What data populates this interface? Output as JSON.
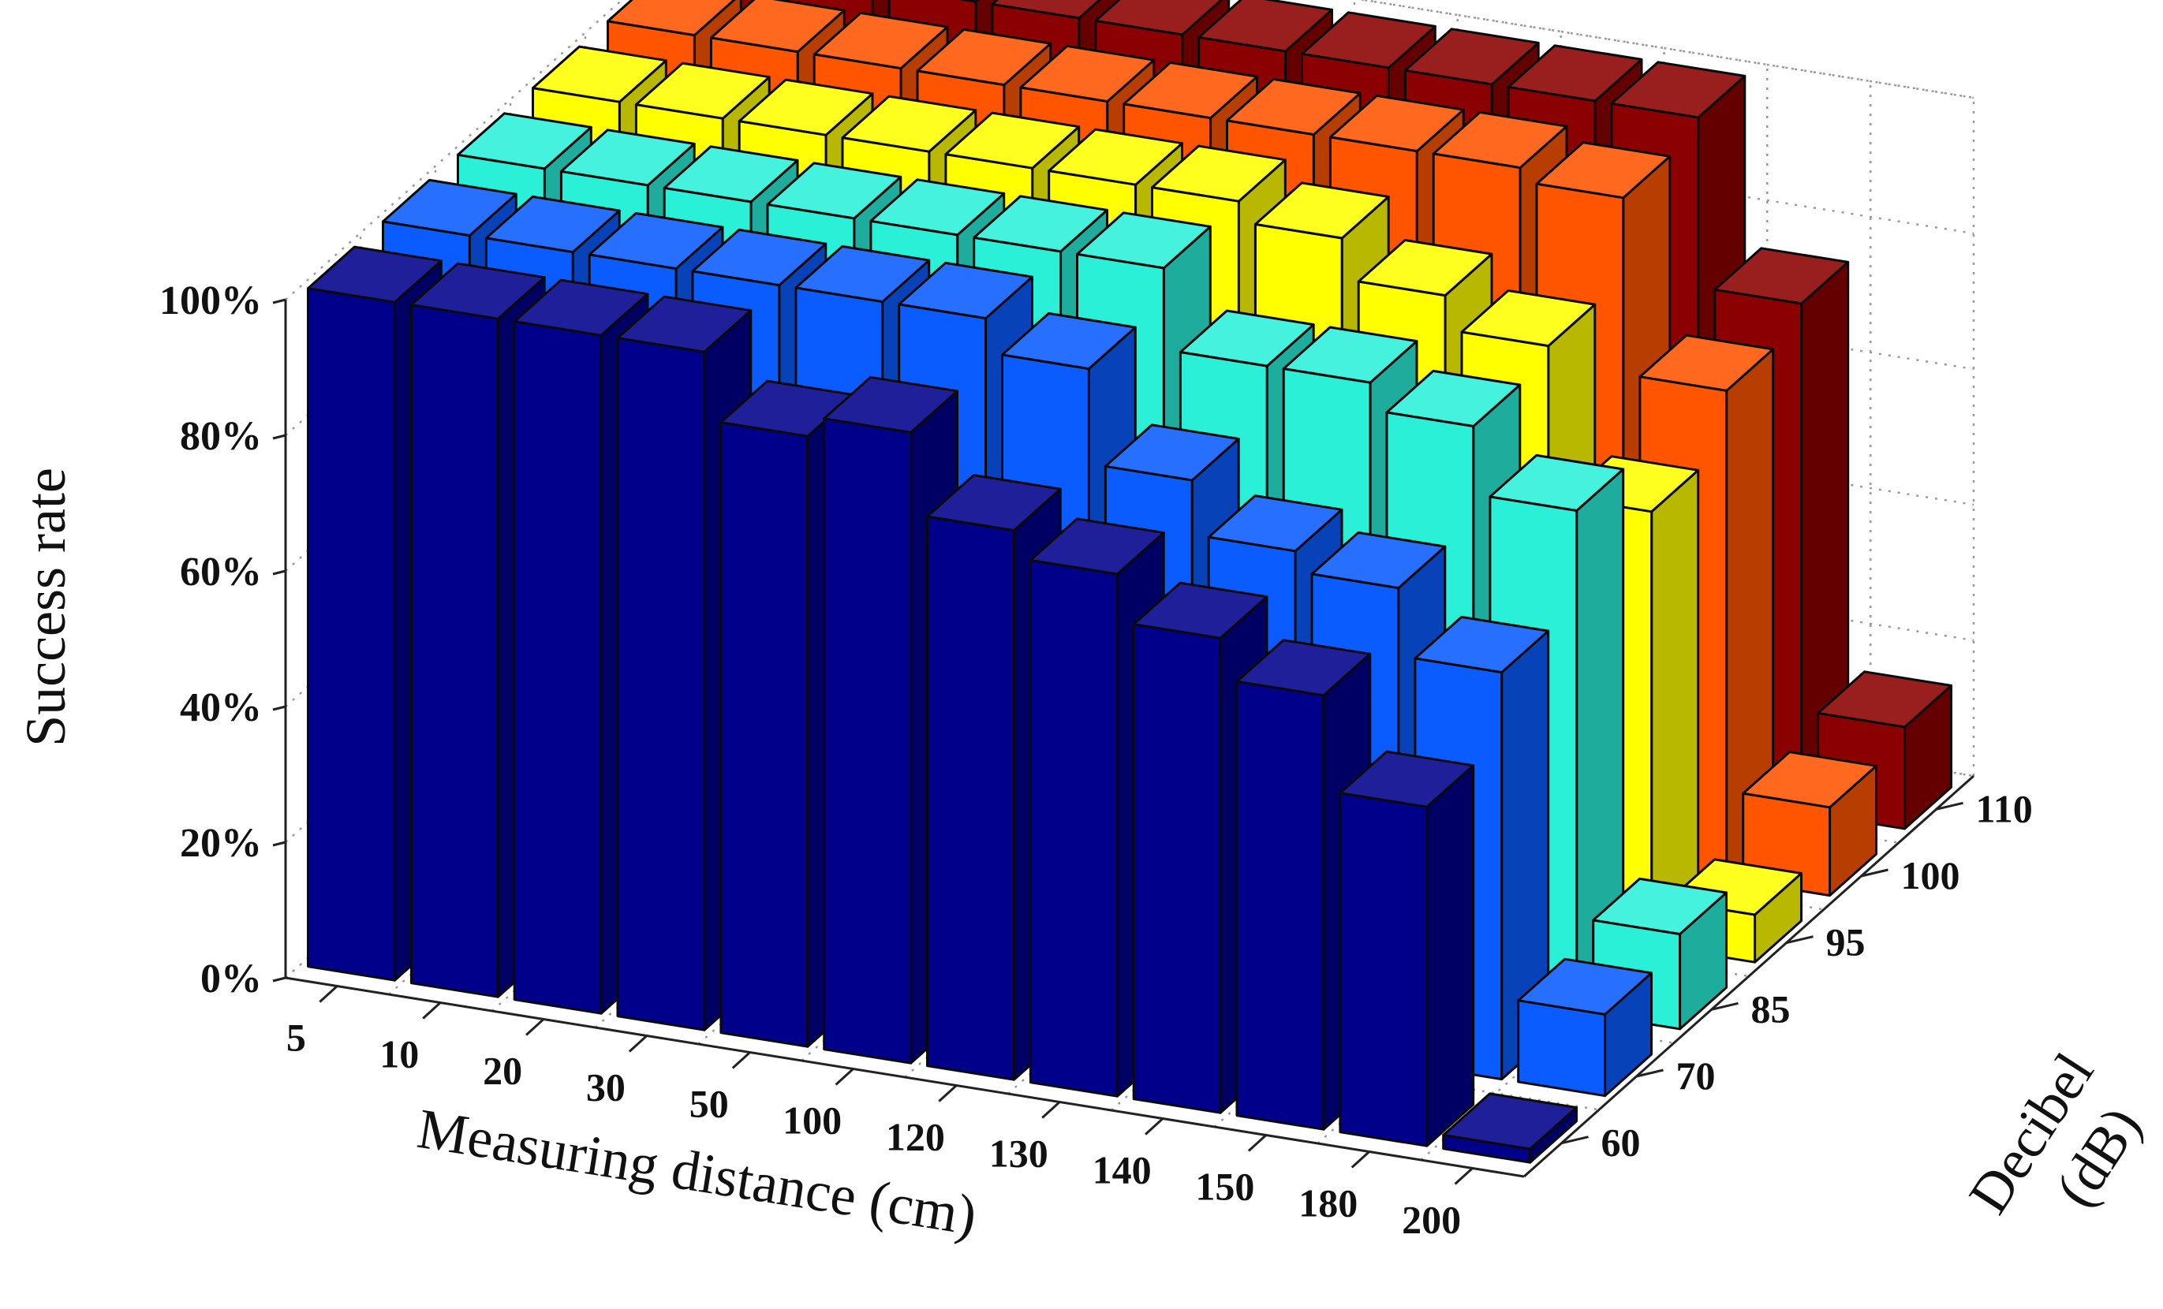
{
  "chart_data": {
    "type": "bar3d",
    "title": "",
    "zlabel": "Success rate",
    "xlabel": "Measuring distance (cm)",
    "ylabel_line1": "Decibel",
    "ylabel_line2": "(dB)",
    "z_ticks": [
      "0%",
      "20%",
      "40%",
      "60%",
      "80%",
      "100%"
    ],
    "zlim": [
      0,
      100
    ],
    "categories": [
      "5",
      "10",
      "20",
      "30",
      "50",
      "100",
      "120",
      "130",
      "140",
      "150",
      "180",
      "200"
    ],
    "series": [
      {
        "name": "60",
        "color": "#00008b",
        "values": [
          100,
          100,
          100,
          100,
          90,
          93,
          81,
          77,
          70,
          64,
          50,
          2
        ]
      },
      {
        "name": "70",
        "color": "#0a5cff",
        "values": [
          100,
          100,
          100,
          100,
          100,
          100,
          95,
          81,
          73,
          70,
          60,
          12
        ]
      },
      {
        "name": "85",
        "color": "#2af0d8",
        "values": [
          100,
          100,
          100,
          100,
          100,
          100,
          100,
          88,
          88,
          84,
          74,
          14
        ]
      },
      {
        "name": "95",
        "color": "#ffff00",
        "values": [
          100,
          100,
          100,
          100,
          100,
          100,
          100,
          97,
          91,
          86,
          64,
          7
        ]
      },
      {
        "name": "100",
        "color": "#ff5500",
        "values": [
          100,
          100,
          100,
          100,
          100,
          100,
          100,
          100,
          100,
          98,
          72,
          13
        ]
      },
      {
        "name": "110",
        "color": "#8b0000",
        "values": [
          100,
          100,
          100,
          100,
          100,
          100,
          100,
          100,
          100,
          100,
          75,
          15
        ]
      }
    ],
    "grid": true
  }
}
